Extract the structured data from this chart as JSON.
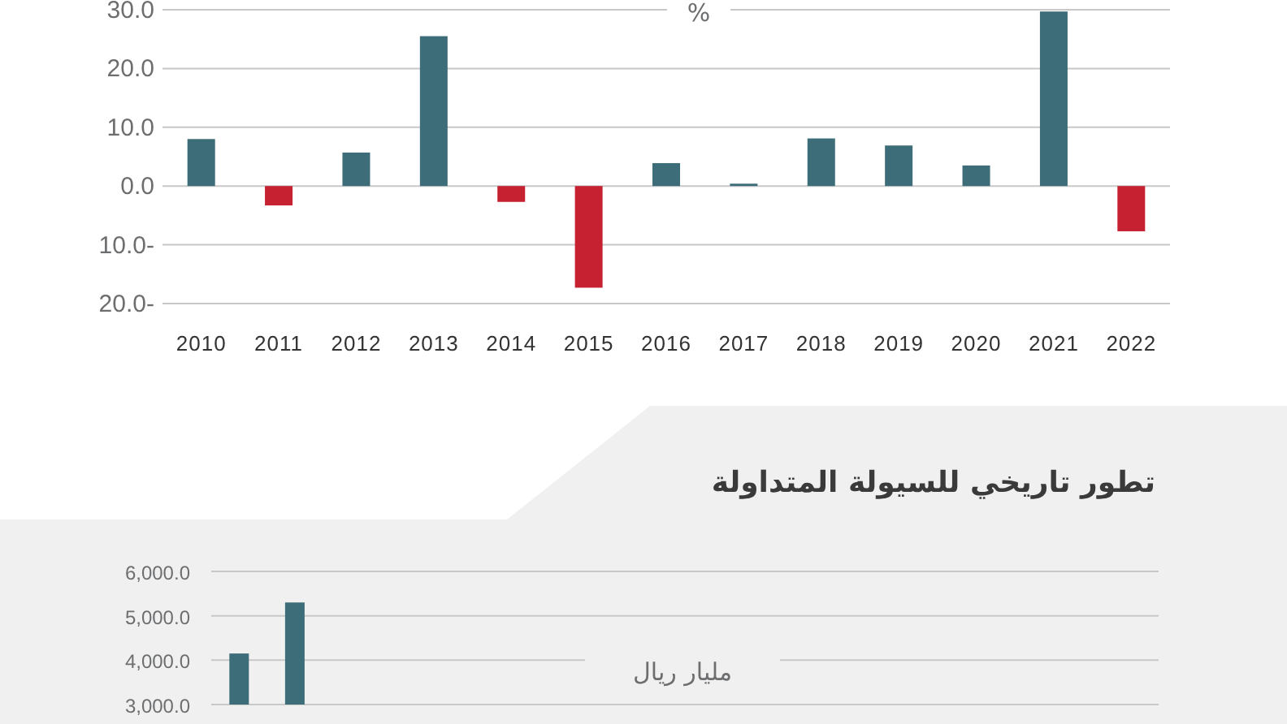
{
  "chart_data": [
    {
      "type": "bar",
      "categories": [
        "2010",
        "2011",
        "2012",
        "2013",
        "2014",
        "2015",
        "2016",
        "2017",
        "2018",
        "2019",
        "2020",
        "2021",
        "2022"
      ],
      "values": [
        8.0,
        -3.3,
        5.7,
        25.5,
        -2.7,
        -17.3,
        3.9,
        0.4,
        8.1,
        6.9,
        3.5,
        29.7,
        -7.7
      ],
      "colors": [
        "#3d6d78",
        "#c62130",
        "#3d6d78",
        "#3d6d78",
        "#c62130",
        "#c62130",
        "#3d6d78",
        "#3d6d78",
        "#3d6d78",
        "#3d6d78",
        "#3d6d78",
        "#3d6d78",
        "#c62130"
      ],
      "ylim": [
        -20,
        30
      ],
      "yticks": [
        {
          "value": -20,
          "label": "20.0-"
        },
        {
          "value": -10,
          "label": "10.0-"
        },
        {
          "value": 0,
          "label": "0.0"
        },
        {
          "value": 10,
          "label": "10.0"
        },
        {
          "value": 20,
          "label": "20.0"
        },
        {
          "value": 30,
          "label": "30.0"
        }
      ],
      "grid": "y",
      "annotations": [
        "%"
      ]
    },
    {
      "type": "bar",
      "title": "تطور تاريخي للسيولة المتداولة",
      "categories": [
        null,
        null,
        null,
        null,
        null,
        null,
        null,
        null,
        null,
        null,
        null,
        null,
        null,
        null,
        null,
        null,
        null
      ],
      "values": [
        4150,
        5300,
        null,
        null,
        null,
        null,
        null,
        null,
        null,
        null,
        null,
        null,
        null,
        null,
        null,
        null,
        null
      ],
      "color": "#3d6d78",
      "ylim": [
        3000,
        6000
      ],
      "yticks": [
        {
          "value": 3000,
          "label": "3,000.0"
        },
        {
          "value": 4000,
          "label": "4,000.0"
        },
        {
          "value": 5000,
          "label": "5,000.0"
        },
        {
          "value": 6000,
          "label": "6,000.0"
        }
      ],
      "grid": "y",
      "tick_labels": "y",
      "annotations": [
        "مليار ريال"
      ]
    }
  ]
}
